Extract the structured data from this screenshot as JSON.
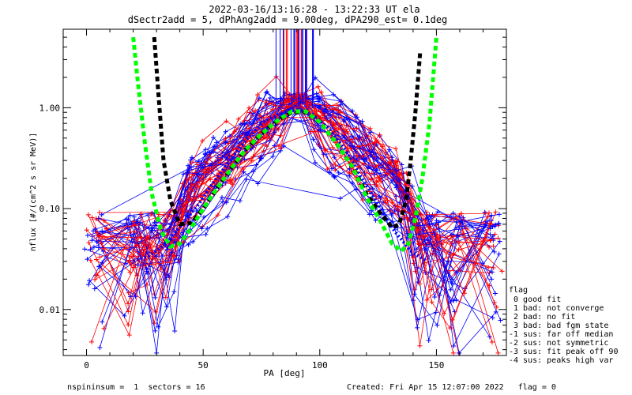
{
  "header": {
    "title_line1": "2022-03-16/13:16:28 - 13:22:33 UT ela",
    "title_line2": "dSectr2add = 5, dPhAng2add = 9.00deg, dPA290_est=   0.1deg"
  },
  "footer": {
    "left": "nspininsum =  1  sectors = 16",
    "right": "Created: Fri Apr 15 12:07:00 2022   flag = 0"
  },
  "legend": {
    "title": "flag",
    "items": [
      " 0 good fit",
      " 1 bad: not converge",
      " 2 bad: no fit",
      " 3 bad: bad fgm state",
      "-1 sus: far off median",
      "-2 sus: not symmetric",
      "-3 sus: fit peak off 90",
      "-4 sus: peaks high var"
    ]
  },
  "colors": {
    "blue": "#0000ff",
    "red": "#ff0000",
    "black": "#000000",
    "green": "#00ff00"
  },
  "chart_data": {
    "type": "line",
    "xlabel": "PA [deg]",
    "ylabel": "nflux [#/(cm^2 s sr MeV)]",
    "xlim": [
      -10,
      180
    ],
    "ylim": [
      0.0035,
      6.0
    ],
    "yscale": "log",
    "x_ticks": [
      0,
      50,
      100,
      150
    ],
    "x_tick_labels": [
      "0",
      "50",
      "100",
      "150"
    ],
    "y_ticks": [
      0.01,
      0.1,
      1.0
    ],
    "y_tick_labels": [
      "0.01",
      "0.10",
      "1.00"
    ],
    "series": [
      {
        "color": "blue",
        "style": "dotted-thick",
        "x": [
          20,
          27,
          34,
          41,
          48,
          55,
          62,
          69,
          76,
          83,
          90,
          97,
          104,
          111,
          118,
          125,
          132,
          139,
          146
        ],
        "y": [
          0.03,
          0.034,
          0.045,
          0.07,
          0.11,
          0.19,
          0.31,
          0.5,
          0.72,
          0.88,
          0.95,
          0.85,
          0.62,
          0.38,
          0.2,
          0.11,
          0.06,
          0.038,
          0.03
        ]
      },
      {
        "color": "black",
        "style": "dashed-thick",
        "x": [
          29,
          31,
          33,
          36,
          40,
          45,
          50,
          56,
          62,
          68,
          75,
          82,
          88,
          94,
          100,
          107,
          114,
          120,
          126,
          131,
          134,
          137,
          139,
          141,
          143
        ],
        "y": [
          5.0,
          1.2,
          0.3,
          0.12,
          0.07,
          0.072,
          0.1,
          0.16,
          0.25,
          0.38,
          0.55,
          0.75,
          0.9,
          0.9,
          0.72,
          0.45,
          0.26,
          0.14,
          0.09,
          0.065,
          0.07,
          0.12,
          0.3,
          0.9,
          3.5
        ]
      },
      {
        "color": "green",
        "style": "dashed-thick",
        "x": [
          20,
          22,
          25,
          28,
          32,
          36,
          40,
          45,
          50,
          56,
          62,
          68,
          75,
          82,
          88,
          94,
          100,
          107,
          114,
          120,
          126,
          131,
          135,
          138,
          141,
          144,
          147,
          150
        ],
        "y": [
          5.0,
          1.8,
          0.45,
          0.14,
          0.06,
          0.042,
          0.045,
          0.065,
          0.1,
          0.16,
          0.25,
          0.38,
          0.55,
          0.75,
          0.92,
          0.92,
          0.72,
          0.45,
          0.26,
          0.13,
          0.075,
          0.045,
          0.038,
          0.045,
          0.08,
          0.2,
          0.7,
          5.0
        ]
      }
    ]
  }
}
